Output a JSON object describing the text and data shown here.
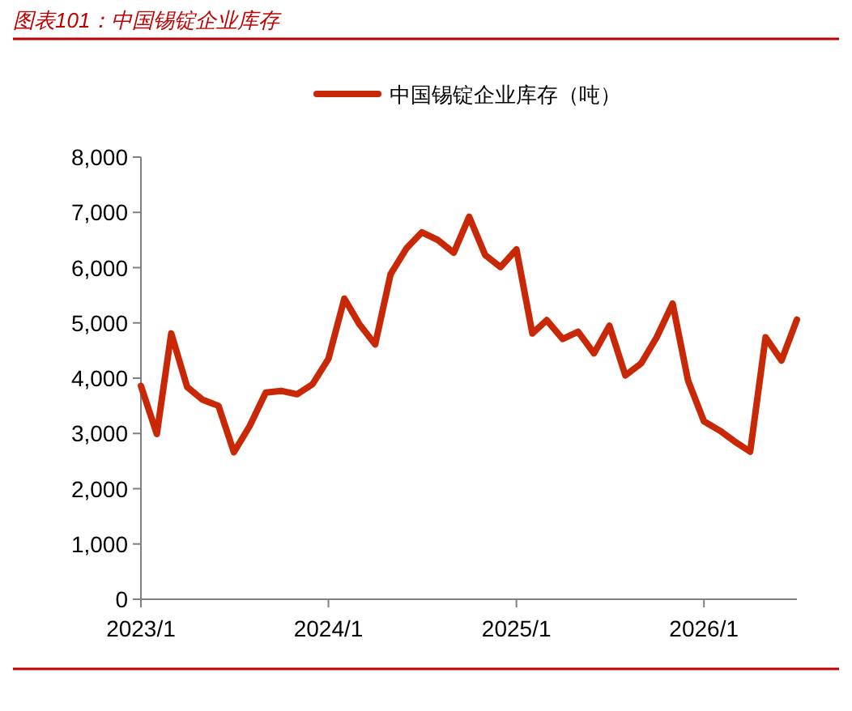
{
  "chart_data": {
    "type": "line",
    "title": "图表101：中国锡锭企业库存",
    "x": [
      "2023-01",
      "2023-02",
      "2023-03",
      "2023-04",
      "2023-05",
      "2023-06",
      "2023-07",
      "2023-08",
      "2023-09",
      "2023-10",
      "2023-11",
      "2023-12",
      "2024-01",
      "2024-02",
      "2024-03",
      "2024-04",
      "2024-05",
      "2024-06",
      "2024-07",
      "2024-08",
      "2024-09",
      "2024-10",
      "2024-11",
      "2024-12",
      "2025-01",
      "2025-02",
      "2025-03",
      "2025-04",
      "2025-05",
      "2025-06",
      "2025-07",
      "2025-08",
      "2025-09",
      "2025-10",
      "2025-11",
      "2025-12",
      "2026-01",
      "2026-02",
      "2026-03",
      "2026-04",
      "2026-05",
      "2026-06",
      "2026-07"
    ],
    "series": [
      {
        "name": "中国锡锭企业库存（吨）",
        "color": "#c82806",
        "values": [
          3860,
          2990,
          4810,
          3840,
          3610,
          3500,
          2660,
          3140,
          3740,
          3770,
          3710,
          3890,
          4350,
          5440,
          4980,
          4610,
          5880,
          6350,
          6640,
          6500,
          6270,
          6920,
          6230,
          6010,
          6330,
          4810,
          5050,
          4710,
          4840,
          4450,
          4950,
          4050,
          4270,
          4740,
          5350,
          3960,
          3220,
          3050,
          2860,
          2670,
          4740,
          4320,
          5060
        ]
      }
    ],
    "xlim": [
      "2023-01",
      "2026-07"
    ],
    "xticks": [
      {
        "value": "2023-01",
        "label": "2023/1"
      },
      {
        "value": "2024-01",
        "label": "2024/1"
      },
      {
        "value": "2025-01",
        "label": "2025/1"
      },
      {
        "value": "2026-01",
        "label": "2026/1"
      }
    ],
    "ylim": [
      0,
      8000
    ],
    "yticks": [
      {
        "value": 0,
        "label": "0"
      },
      {
        "value": 1000,
        "label": "1,000"
      },
      {
        "value": 2000,
        "label": "2,000"
      },
      {
        "value": 3000,
        "label": "3,000"
      },
      {
        "value": 4000,
        "label": "4,000"
      },
      {
        "value": 5000,
        "label": "5,000"
      },
      {
        "value": 6000,
        "label": "6,000"
      },
      {
        "value": 7000,
        "label": "7,000"
      },
      {
        "value": 8000,
        "label": "8,000"
      }
    ],
    "grid": false,
    "legend": "top",
    "marker": "none",
    "line_style": "solid"
  }
}
